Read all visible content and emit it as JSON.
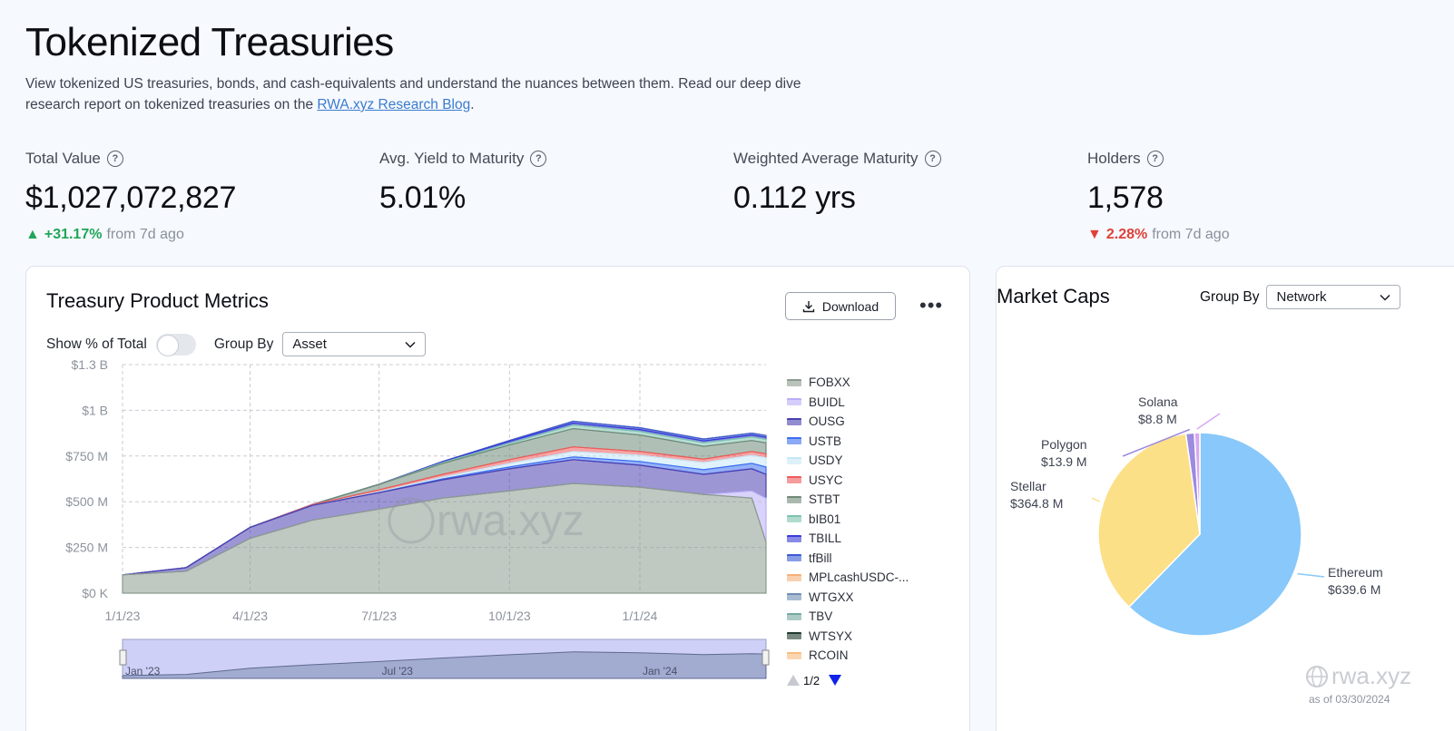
{
  "header": {
    "title": "Tokenized Treasuries",
    "description_text": "View tokenized US treasuries, bonds, and cash-equivalents and understand the nuances between them. Read our deep dive research report on tokenized treasuries on the ",
    "link_text": "RWA.xyz Research Blog",
    "description_end": "."
  },
  "stats": {
    "total_value": {
      "label": "Total Value",
      "value": "$1,027,072,827",
      "change": "+31.17%",
      "note": "from 7d ago"
    },
    "avg_yield": {
      "label": "Avg. Yield to Maturity",
      "value": "5.01%"
    },
    "wam": {
      "label": "Weighted Average Maturity",
      "value": "0.112 yrs"
    },
    "holders": {
      "label": "Holders",
      "value": "1,578",
      "change": "2.28%",
      "note": "from 7d ago"
    }
  },
  "metrics_card": {
    "title": "Treasury Product Metrics",
    "download_label": "Download",
    "more_label": "•••",
    "show_pct_label": "Show % of Total",
    "group_by_label": "Group By",
    "group_by_value": "Asset",
    "pager": "1/2",
    "watermark": "rwa.xyz"
  },
  "market_caps_card": {
    "title": "Market Caps",
    "group_by_label": "Group By",
    "group_by_value": "Network",
    "as_of": "as of 03/30/2024",
    "watermark": "rwa.xyz"
  },
  "chart_data": [
    {
      "type": "area",
      "title": "Treasury Product Metrics",
      "stacked": true,
      "y_ticks": [
        "$0 K",
        "$250 M",
        "$500 M",
        "$750 M",
        "$1 B",
        "$1.3 B"
      ],
      "ylim": [
        0,
        1250
      ],
      "y_unit": "$M",
      "x_ticks": [
        "1/1/23",
        "4/1/23",
        "7/1/23",
        "10/1/23",
        "1/1/24"
      ],
      "navigator_ticks": [
        "Jan '23",
        "Jul '23",
        "Jan '24"
      ],
      "x": [
        "2023-01-01",
        "2023-02-15",
        "2023-04-01",
        "2023-05-15",
        "2023-07-01",
        "2023-08-15",
        "2023-10-01",
        "2023-11-15",
        "2024-01-01",
        "2024-02-15",
        "2024-03-20",
        "2024-03-30"
      ],
      "legend_position": "right",
      "series": [
        {
          "name": "FOBXX",
          "color": "#8a9a8e",
          "values": [
            100,
            120,
            300,
            400,
            460,
            520,
            560,
            600,
            580,
            540,
            520,
            280
          ]
        },
        {
          "name": "BUIDL",
          "color": "#b9aef7",
          "values": [
            0,
            0,
            0,
            0,
            0,
            0,
            0,
            0,
            0,
            0,
            40,
            240
          ]
        },
        {
          "name": "OUSG",
          "color": "#4a3fb0",
          "values": [
            0,
            20,
            60,
            80,
            90,
            100,
            120,
            130,
            120,
            110,
            120,
            130
          ]
        },
        {
          "name": "USTB",
          "color": "#3c6ff0",
          "values": [
            0,
            0,
            0,
            0,
            0,
            5,
            10,
            15,
            20,
            25,
            30,
            40
          ]
        },
        {
          "name": "USDY",
          "color": "#c6e8f7",
          "values": [
            0,
            0,
            0,
            0,
            5,
            10,
            20,
            30,
            35,
            40,
            45,
            50
          ]
        },
        {
          "name": "USYC",
          "color": "#f05a5a",
          "values": [
            0,
            0,
            0,
            5,
            10,
            15,
            20,
            25,
            20,
            18,
            20,
            22
          ]
        },
        {
          "name": "STBT",
          "color": "#6f8a78",
          "values": [
            0,
            0,
            0,
            0,
            30,
            60,
            80,
            100,
            90,
            70,
            60,
            60
          ]
        },
        {
          "name": "bIB01",
          "color": "#7ec3b0",
          "values": [
            0,
            0,
            0,
            0,
            0,
            5,
            10,
            20,
            20,
            20,
            20,
            20
          ]
        },
        {
          "name": "TBILL",
          "color": "#3a3ad8",
          "values": [
            0,
            0,
            0,
            0,
            0,
            5,
            10,
            10,
            10,
            10,
            10,
            10
          ]
        },
        {
          "name": "tfBill",
          "color": "#3b5bd6",
          "values": [
            0,
            0,
            0,
            0,
            0,
            0,
            5,
            10,
            10,
            10,
            10,
            10
          ]
        },
        {
          "name": "MPLcashUSDC-...",
          "color": "#f4b07a",
          "values": [
            0,
            0,
            0,
            0,
            0,
            0,
            0,
            0,
            0,
            0,
            0,
            0
          ]
        },
        {
          "name": "WTGXX",
          "color": "#6e8fb3",
          "values": [
            0,
            0,
            0,
            0,
            0,
            0,
            0,
            0,
            0,
            0,
            0,
            0
          ]
        },
        {
          "name": "TBV",
          "color": "#74a9a0",
          "values": [
            0,
            0,
            0,
            0,
            0,
            0,
            0,
            0,
            0,
            0,
            0,
            0
          ]
        },
        {
          "name": "WTSYX",
          "color": "#1f3b2f",
          "values": [
            0,
            0,
            0,
            0,
            0,
            0,
            0,
            0,
            0,
            0,
            0,
            0
          ]
        },
        {
          "name": "RCOIN",
          "color": "#f7bd7d",
          "values": [
            0,
            0,
            0,
            0,
            0,
            0,
            0,
            0,
            0,
            0,
            0,
            0
          ]
        }
      ]
    },
    {
      "type": "pie",
      "title": "Market Caps",
      "slices": [
        {
          "name": "Ethereum",
          "label": "$639.6 M",
          "value": 639.6,
          "color": "#88c8fa"
        },
        {
          "name": "Stellar",
          "label": "$364.8 M",
          "value": 364.8,
          "color": "#fce088"
        },
        {
          "name": "Polygon",
          "label": "$13.9 M",
          "value": 13.9,
          "color": "#9c8be0"
        },
        {
          "name": "Solana",
          "label": "$8.8 M",
          "value": 8.8,
          "color": "#d8a8f0"
        }
      ]
    }
  ]
}
